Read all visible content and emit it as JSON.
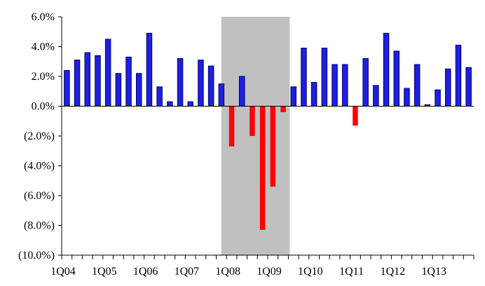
{
  "chart_data": {
    "type": "bar",
    "title": "",
    "xlabel": "",
    "ylabel": "",
    "ylim": [
      -10,
      6
    ],
    "y_ticks": [
      6,
      4,
      2,
      0,
      -2,
      -4,
      -6,
      -8,
      -10
    ],
    "y_tick_labels": [
      "6.0%",
      "4.0%",
      "2.0%",
      "0.0%",
      "(2.0%)",
      "(4.0%)",
      "(6.0%)",
      "(8.0%)",
      "(10.0%)"
    ],
    "categories": [
      "1Q04",
      "2Q04",
      "3Q04",
      "4Q04",
      "1Q05",
      "2Q05",
      "3Q05",
      "4Q05",
      "1Q06",
      "2Q06",
      "3Q06",
      "4Q06",
      "1Q07",
      "2Q07",
      "3Q07",
      "4Q07",
      "1Q08",
      "2Q08",
      "3Q08",
      "4Q08",
      "1Q09",
      "2Q09",
      "3Q09",
      "4Q09",
      "1Q10",
      "2Q10",
      "3Q10",
      "4Q10",
      "1Q11",
      "2Q11",
      "3Q11",
      "4Q11",
      "1Q12",
      "2Q12",
      "3Q12",
      "4Q12",
      "1Q13",
      "2Q13",
      "3Q13",
      "4Q13"
    ],
    "x_tick_labels": [
      "1Q04",
      "1Q05",
      "1Q06",
      "1Q07",
      "1Q08",
      "1Q09",
      "1Q10",
      "1Q11",
      "1Q12",
      "1Q13"
    ],
    "values": [
      2.4,
      3.1,
      3.6,
      3.4,
      4.5,
      2.2,
      3.3,
      2.2,
      4.9,
      1.3,
      0.3,
      3.2,
      0.3,
      3.1,
      2.7,
      1.5,
      -2.7,
      2.0,
      -2.0,
      -8.3,
      -5.4,
      -0.4,
      1.3,
      3.9,
      1.6,
      3.9,
      2.8,
      2.8,
      -1.3,
      3.2,
      1.4,
      4.9,
      3.7,
      1.2,
      2.8,
      0.1,
      1.1,
      2.5,
      4.1,
      2.6
    ],
    "colors": {
      "positive": "#1f1fe0",
      "negative": "#ff0000",
      "recession": "#c0c0c0",
      "outline": "#00006e"
    },
    "shaded_region": {
      "from": "4Q07",
      "to": "2Q09"
    },
    "grid": false,
    "legend": "none"
  }
}
